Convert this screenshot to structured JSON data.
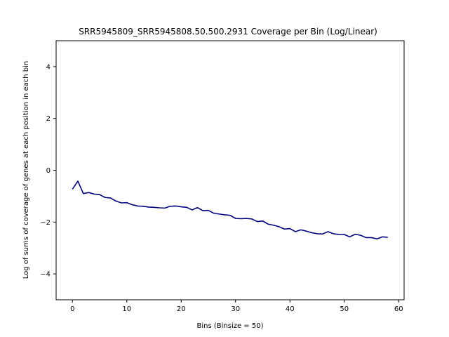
{
  "chart_data": {
    "type": "line",
    "title": "SRR5945809_SRR5945808.50.500.2931 Coverage per Bin (Log/Linear)",
    "xlabel": "Bins (Binsize = 50)",
    "ylabel": "Log of sums of coverage of genes at each position in each bin",
    "xlim": [
      -3,
      61
    ],
    "ylim": [
      -5,
      5
    ],
    "xticks": [
      0,
      10,
      20,
      30,
      40,
      50,
      60
    ],
    "yticks": [
      -4,
      -2,
      0,
      2,
      4
    ],
    "grid": false,
    "line_color": "#000080",
    "series": [
      {
        "x": [
          0,
          1,
          2,
          3,
          4,
          5,
          6,
          7,
          8,
          9,
          10,
          11,
          12,
          13,
          14,
          15,
          16,
          17,
          18,
          19,
          20,
          21,
          22,
          23,
          24,
          25,
          26,
          27,
          28,
          29,
          30,
          31,
          32,
          33,
          34,
          35,
          36,
          37,
          38,
          39,
          40,
          41,
          42,
          43,
          44,
          45,
          46,
          47,
          48,
          49,
          50,
          51,
          52,
          53,
          54,
          55,
          56,
          57,
          58
        ],
        "values": [
          -0.73,
          -0.42,
          -0.9,
          -0.86,
          -0.92,
          -0.94,
          -1.05,
          -1.07,
          -1.19,
          -1.26,
          -1.25,
          -1.33,
          -1.38,
          -1.39,
          -1.42,
          -1.43,
          -1.45,
          -1.46,
          -1.39,
          -1.38,
          -1.41,
          -1.43,
          -1.53,
          -1.44,
          -1.56,
          -1.55,
          -1.66,
          -1.69,
          -1.72,
          -1.74,
          -1.86,
          -1.87,
          -1.86,
          -1.88,
          -1.98,
          -1.96,
          -2.08,
          -2.12,
          -2.18,
          -2.27,
          -2.25,
          -2.37,
          -2.3,
          -2.35,
          -2.41,
          -2.45,
          -2.46,
          -2.37,
          -2.45,
          -2.48,
          -2.48,
          -2.57,
          -2.47,
          -2.51,
          -2.6,
          -2.6,
          -2.65,
          -2.57,
          -2.59
        ]
      }
    ]
  }
}
